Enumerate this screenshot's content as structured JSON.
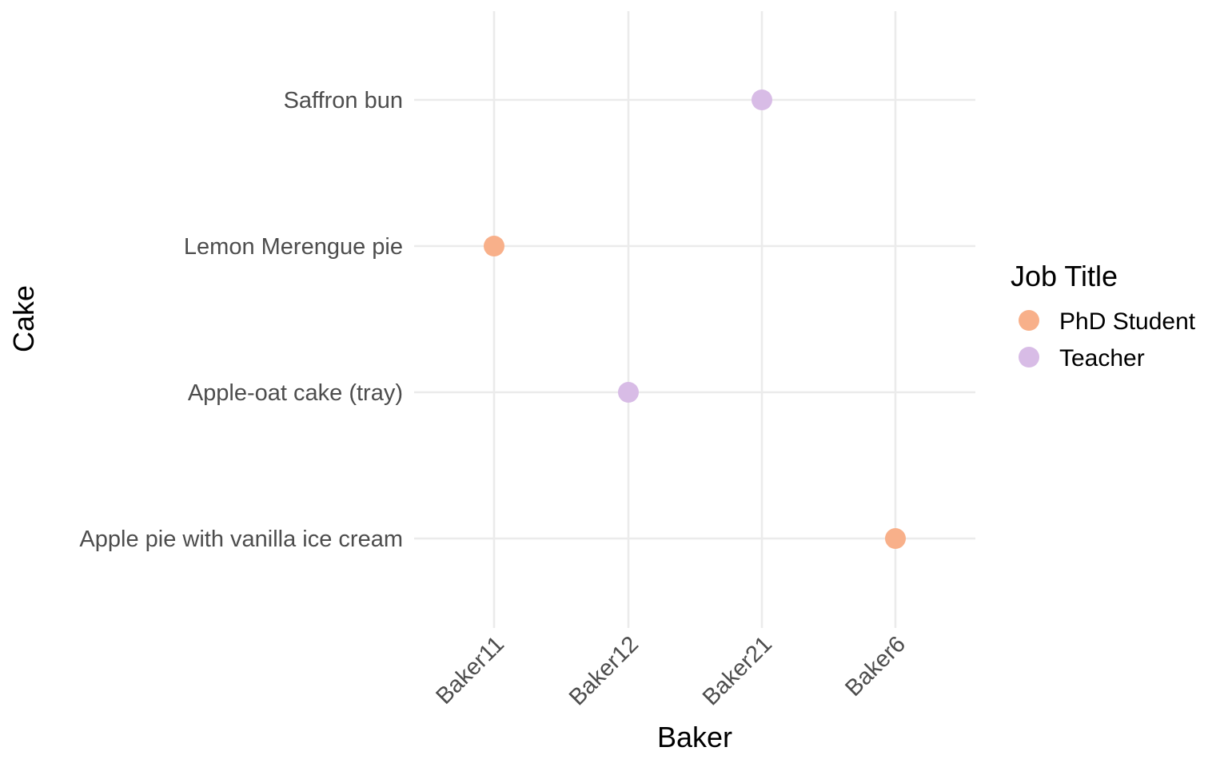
{
  "chart_data": {
    "type": "scatter",
    "title": "",
    "xlabel": "Baker",
    "ylabel": "Cake",
    "x_categories": [
      "Baker11",
      "Baker12",
      "Baker21",
      "Baker6"
    ],
    "y_categories": [
      "Apple pie with vanilla ice cream",
      "Apple-oat cake (tray)",
      "Lemon Merengue pie",
      "Saffron bun"
    ],
    "legend": {
      "title": "Job Title",
      "position": "right",
      "entries": [
        {
          "name": "PhD Student",
          "color": "#F8B08A"
        },
        {
          "name": "Teacher",
          "color": "#D8BCE6"
        }
      ]
    },
    "points": [
      {
        "x": "Baker21",
        "y": "Saffron bun",
        "group": "Teacher"
      },
      {
        "x": "Baker11",
        "y": "Lemon Merengue pie",
        "group": "PhD Student"
      },
      {
        "x": "Baker12",
        "y": "Apple-oat cake (tray)",
        "group": "Teacher"
      },
      {
        "x": "Baker6",
        "y": "Apple pie with vanilla ice cream",
        "group": "PhD Student"
      }
    ],
    "grid": true
  }
}
